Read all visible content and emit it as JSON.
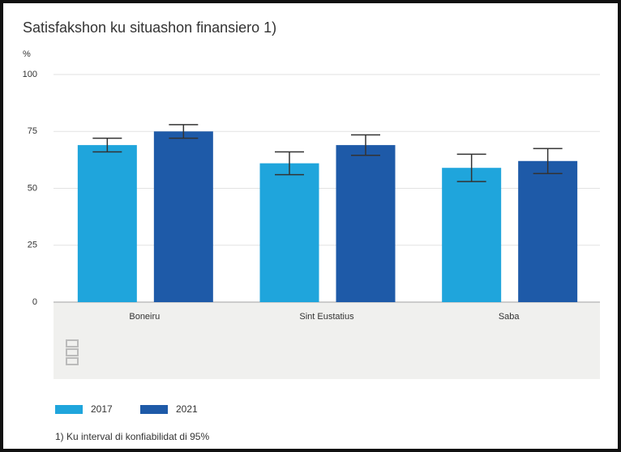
{
  "chart_data": {
    "type": "bar",
    "title": "Satisfakshon ku situashon finansiero 1)",
    "y_label": "%",
    "categories": [
      "Boneiru",
      "Sint Eustatius",
      "Saba"
    ],
    "series": [
      {
        "name": "2017",
        "color": "#1fa5dc",
        "values": [
          69,
          61,
          59
        ],
        "errors": [
          3,
          5,
          6
        ]
      },
      {
        "name": "2021",
        "color": "#1e5aa8",
        "values": [
          75,
          69,
          62
        ],
        "errors": [
          3,
          4.5,
          5.5
        ]
      }
    ],
    "ylim": [
      0,
      100
    ],
    "yticks": [
      0,
      25,
      50,
      75,
      100
    ],
    "grid": true,
    "footnote": "1) Ku interval di konfiabilidat di 95%"
  }
}
